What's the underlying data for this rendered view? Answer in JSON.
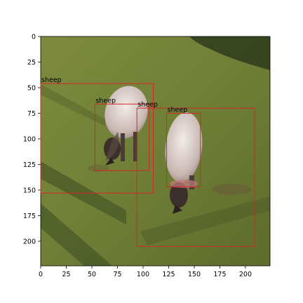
{
  "image": {
    "description_icon": "photo-icon",
    "width_units": 224,
    "height_units": 224
  },
  "axes": {
    "x_ticks": [
      0,
      25,
      50,
      75,
      100,
      125,
      150,
      175,
      200
    ],
    "y_ticks": [
      0,
      25,
      50,
      75,
      100,
      125,
      150,
      175,
      200
    ],
    "xlim": [
      0,
      224
    ],
    "ylim": [
      224,
      0
    ]
  },
  "colors": {
    "box": "#d62728",
    "grass": "#7f8a3c"
  },
  "detections": [
    {
      "label": "sheep",
      "x0": 0,
      "y0": 46,
      "x1": 110,
      "y1": 153
    },
    {
      "label": "sheep",
      "x0": 53,
      "y0": 66,
      "x1": 106,
      "y1": 131
    },
    {
      "label": "sheep",
      "x0": 94,
      "y0": 70,
      "x1": 209,
      "y1": 205
    },
    {
      "label": "sheep",
      "x0": 123,
      "y0": 75,
      "x1": 156,
      "y1": 147
    }
  ]
}
